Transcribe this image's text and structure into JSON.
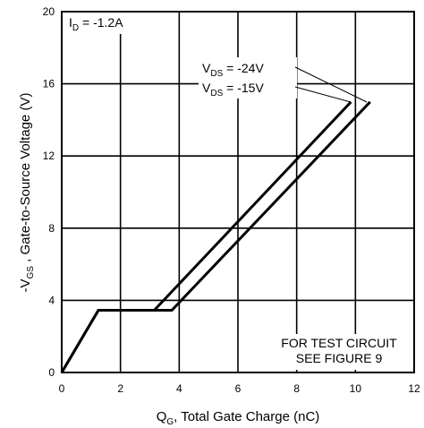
{
  "chart_data": {
    "type": "line",
    "title": "",
    "xlabel": {
      "prefix": "Q",
      "sub": "G",
      "suffix": ", Total Gate Charge (nC)"
    },
    "ylabel": {
      "prefix": "-V",
      "sub": "GS",
      "suffix": " , Gate-to-Source Voltage (V)"
    },
    "xlim": [
      0,
      12
    ],
    "ylim": [
      0,
      20
    ],
    "x_ticks": [
      "0",
      "2",
      "4",
      "6",
      "8",
      "10",
      "12"
    ],
    "y_ticks": [
      "0",
      "4",
      "8",
      "12",
      "16",
      "20"
    ],
    "grid": true,
    "series": [
      {
        "name": "V_DS = -15V",
        "x": [
          0,
          1.25,
          3.15,
          9.85
        ],
        "y": [
          0,
          3.45,
          3.45,
          15.0
        ]
      },
      {
        "name": "V_DS = -24V",
        "x": [
          0,
          1.25,
          3.75,
          10.5
        ],
        "y": [
          0,
          3.45,
          3.45,
          15.0
        ]
      }
    ],
    "annotations": {
      "id": {
        "prefix": "I",
        "sub": "D",
        "suffix": " = -1.2A"
      },
      "vds24": {
        "prefix": "V",
        "sub": "DS",
        "suffix": " = -24V"
      },
      "vds15": {
        "prefix": "V",
        "sub": "DS",
        "suffix": " = -15V"
      },
      "test_line1": "FOR TEST CIRCUIT",
      "test_line2": "SEE FIGURE 9"
    }
  }
}
